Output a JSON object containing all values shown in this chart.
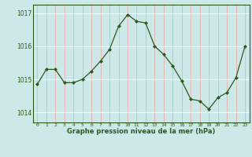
{
  "x": [
    0,
    1,
    2,
    3,
    4,
    5,
    6,
    7,
    8,
    9,
    10,
    11,
    12,
    13,
    14,
    15,
    16,
    17,
    18,
    19,
    20,
    21,
    22,
    23
  ],
  "y": [
    1014.85,
    1015.3,
    1015.3,
    1014.9,
    1014.9,
    1015.0,
    1015.25,
    1015.55,
    1015.9,
    1016.6,
    1016.95,
    1016.75,
    1016.7,
    1016.0,
    1015.75,
    1015.4,
    1014.95,
    1014.4,
    1014.35,
    1014.1,
    1014.45,
    1014.6,
    1015.05,
    1016.0
  ],
  "line_color": "#2d5a1b",
  "marker_color": "#2d5a1b",
  "bg_color": "#cce8e8",
  "grid_color": "#ffffff",
  "axis_label_color": "#2d5a1b",
  "tick_label_color": "#2d5a1b",
  "xlabel": "Graphe pression niveau de la mer (hPa)",
  "ylim": [
    1013.7,
    1017.25
  ],
  "yticks": [
    1014,
    1015,
    1016,
    1017
  ],
  "xticks": [
    0,
    1,
    2,
    3,
    4,
    5,
    6,
    7,
    8,
    9,
    10,
    11,
    12,
    13,
    14,
    15,
    16,
    17,
    18,
    19,
    20,
    21,
    22,
    23
  ]
}
